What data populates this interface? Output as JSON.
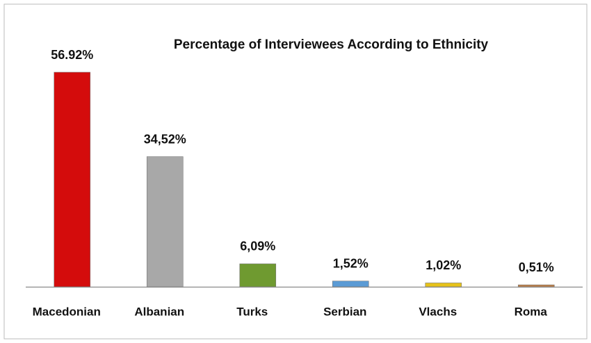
{
  "chart_data": {
    "type": "bar",
    "title": "Percentage of Interviewees According to Ethnicity",
    "categories": [
      "Macedonian",
      "Albanian",
      "Turks",
      "Serbian",
      "Vlachs",
      "Roma"
    ],
    "values": [
      56.92,
      34.52,
      6.09,
      1.52,
      1.02,
      0.51
    ],
    "value_labels": [
      "56.92%",
      "34,52%",
      "6,09%",
      "1,52%",
      "1,02%",
      "0,51%"
    ],
    "colors": [
      "#d40c0c",
      "#a8a8a8",
      "#6f9a30",
      "#5b9bd5",
      "#e6c21a",
      "#c08048"
    ]
  }
}
